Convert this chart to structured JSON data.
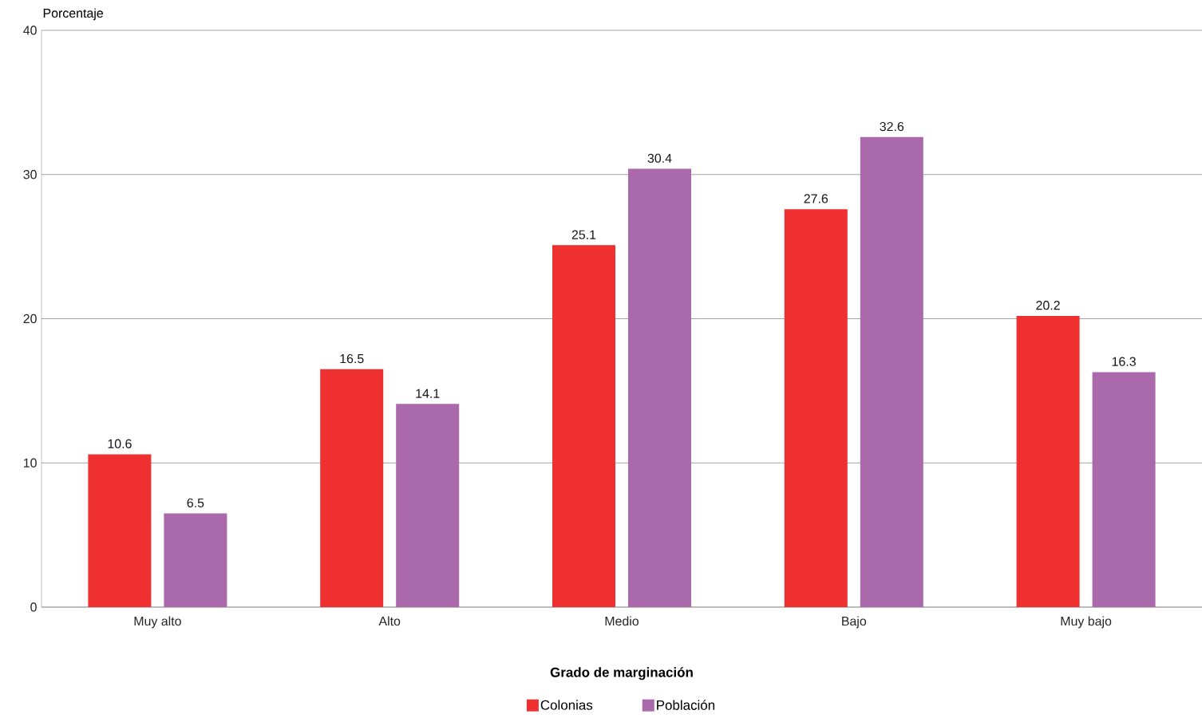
{
  "chart_data": {
    "type": "bar",
    "ylabel": "Porcentaje",
    "xlabel": "Grado de marginación",
    "categories": [
      "Muy alto",
      "Alto",
      "Medio",
      "Bajo",
      "Muy bajo"
    ],
    "series": [
      {
        "name": "Colonias",
        "color": "#ee3031",
        "values": [
          10.6,
          16.5,
          25.1,
          27.6,
          20.2
        ]
      },
      {
        "name": "Población",
        "color": "#a969ab",
        "values": [
          6.5,
          14.1,
          30.4,
          32.6,
          16.3
        ]
      }
    ],
    "ylim": [
      0,
      40
    ],
    "yticks": [
      0,
      10,
      20,
      30,
      40
    ],
    "grid": "y",
    "legend": "bottom",
    "data_labels": true
  }
}
